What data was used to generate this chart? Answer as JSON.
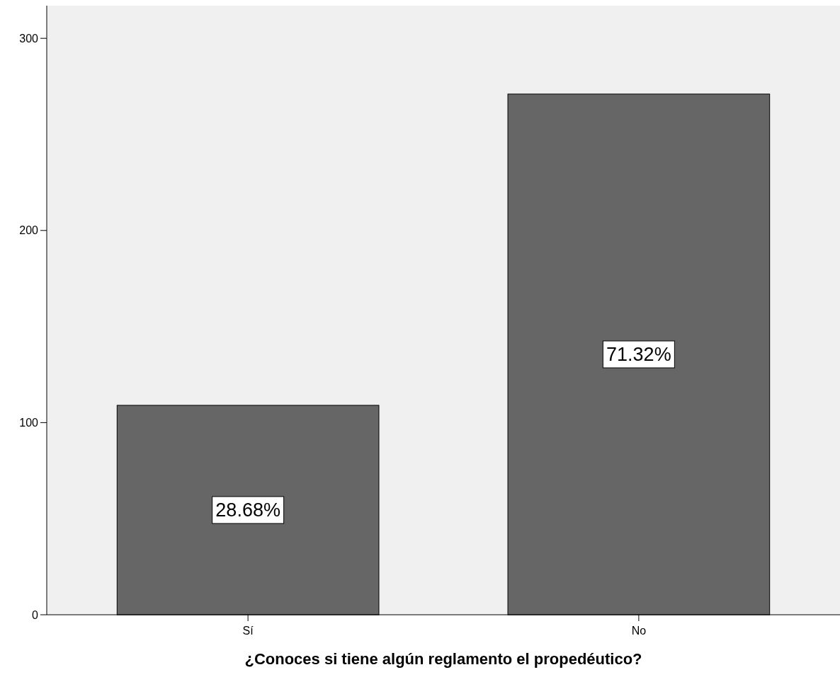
{
  "chart_data": {
    "type": "bar",
    "xlabel": "¿Conoces si tiene algún reglamento el propedéutico?",
    "categories": [
      "Sí",
      "No"
    ],
    "values": [
      109,
      271
    ],
    "annotations": [
      "28.68%",
      "71.32%"
    ],
    "color": "#666666",
    "ylim": [
      0,
      317
    ],
    "yticks": [
      0,
      100,
      200,
      300
    ],
    "grid": false
  }
}
